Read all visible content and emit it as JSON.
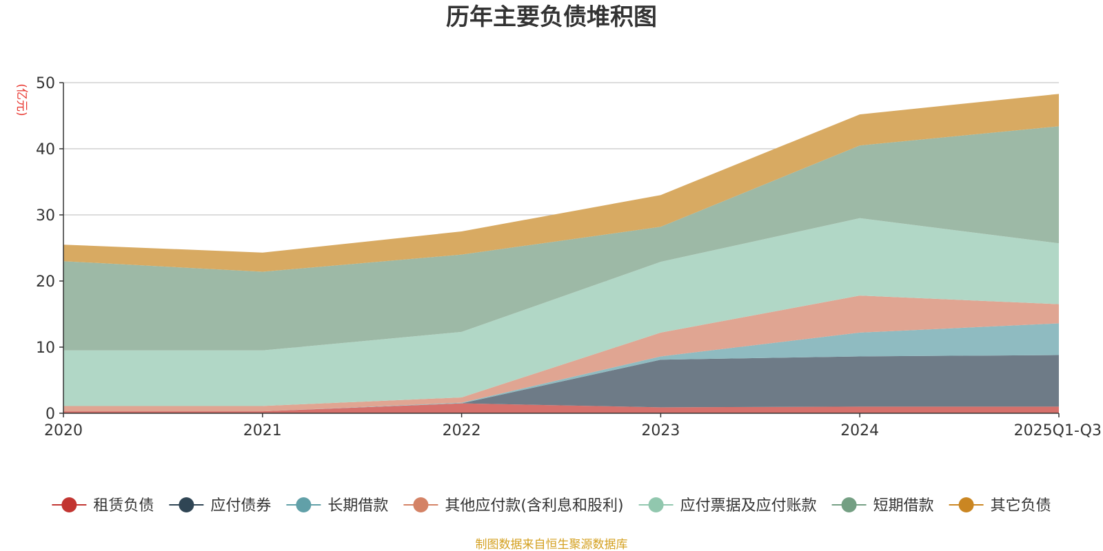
{
  "chart_data": {
    "type": "area",
    "stacked": true,
    "title": "历年主要负债堆积图",
    "ylabel": "(亿元)",
    "xlabel": "",
    "ylim": [
      0,
      50
    ],
    "yticks": [
      0,
      10,
      20,
      30,
      40,
      50
    ],
    "grid": true,
    "legend_position": "bottom",
    "categories": [
      "2020",
      "2021",
      "2022",
      "2023",
      "2024",
      "2025Q1-Q3"
    ],
    "series": [
      {
        "name": "租赁负债",
        "color": "#c23531",
        "fill": "#d6706b",
        "values": [
          0.3,
          0.3,
          1.5,
          0.9,
          1.0,
          1.0
        ]
      },
      {
        "name": "应付债券",
        "color": "#2f4554",
        "fill": "#6e7b87",
        "values": [
          0.0,
          0.0,
          0.0,
          7.2,
          7.6,
          7.8
        ]
      },
      {
        "name": "长期借款",
        "color": "#61a0a8",
        "fill": "#8fbbc1",
        "values": [
          0.0,
          0.0,
          0.1,
          0.5,
          3.6,
          4.8
        ]
      },
      {
        "name": "其他应付款(含利息和股利)",
        "color": "#d48265",
        "fill": "#e0a592",
        "values": [
          0.8,
          0.8,
          0.8,
          3.6,
          5.6,
          2.9
        ]
      },
      {
        "name": "应付票据及应付账款",
        "color": "#91c7ae",
        "fill": "#b1d7c6",
        "values": [
          8.4,
          8.4,
          9.9,
          10.7,
          11.7,
          9.2
        ]
      },
      {
        "name": "短期借款",
        "color": "#749f83",
        "fill": "#9db9a6",
        "values": [
          13.5,
          11.9,
          11.7,
          5.3,
          11.0,
          17.7
        ]
      },
      {
        "name": "其它负债",
        "color": "#ca8622",
        "fill": "#d8aa62",
        "values": [
          2.5,
          2.9,
          3.5,
          4.8,
          4.7,
          4.9
        ]
      }
    ]
  },
  "footer": "制图数据来自恒生聚源数据库"
}
